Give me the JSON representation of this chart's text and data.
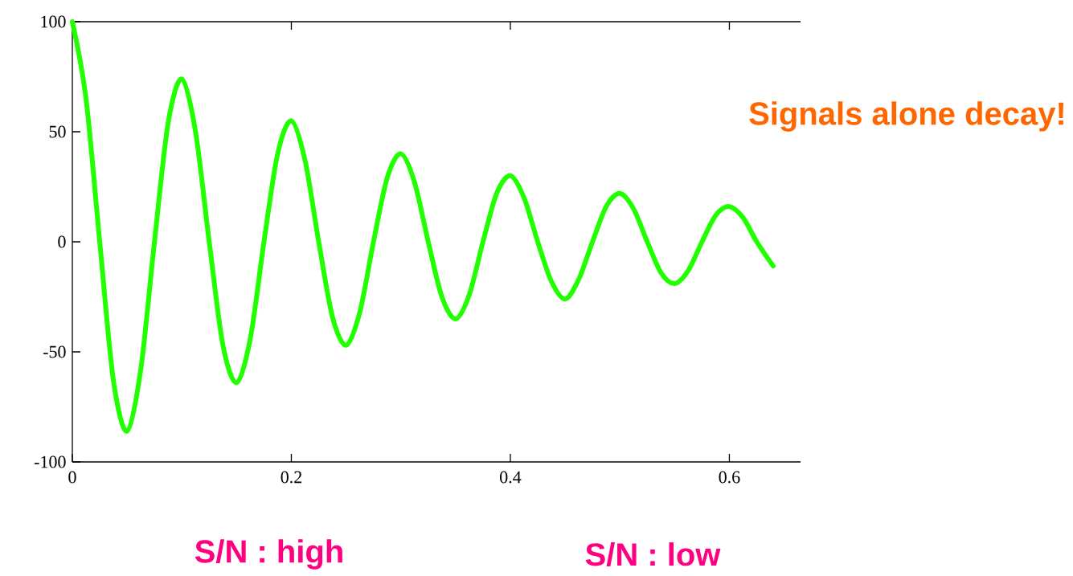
{
  "chart_data": {
    "type": "line",
    "x": [
      0,
      0.0125,
      0.025,
      0.0375,
      0.05,
      0.0625,
      0.075,
      0.0875,
      0.1,
      0.1125,
      0.125,
      0.1375,
      0.15,
      0.1625,
      0.175,
      0.1875,
      0.2,
      0.2125,
      0.225,
      0.2375,
      0.25,
      0.2625,
      0.275,
      0.2875,
      0.3,
      0.3125,
      0.325,
      0.3375,
      0.35,
      0.3625,
      0.375,
      0.3875,
      0.4,
      0.4125,
      0.425,
      0.4375,
      0.45,
      0.4625,
      0.475,
      0.4875,
      0.5,
      0.5125,
      0.525,
      0.5375,
      0.55,
      0.5625,
      0.575,
      0.5875,
      0.6,
      0.6125,
      0.625,
      0.64
    ],
    "series": [
      {
        "color": "#22ff00",
        "values": [
          100,
          65,
          0,
          -63,
          -86,
          -58,
          0,
          54,
          74,
          50,
          0,
          -47,
          -64,
          -44,
          0,
          40,
          55,
          37,
          0,
          -34,
          -47,
          -32,
          0,
          29,
          40,
          27,
          0,
          -25,
          -35,
          -24,
          0,
          22,
          30,
          20,
          0,
          -18,
          -26,
          -17,
          0,
          16,
          22,
          15,
          0,
          -14,
          -19,
          -13,
          0,
          12,
          16,
          11,
          0,
          -11
        ]
      }
    ],
    "xlim": [
      0,
      0.665
    ],
    "ylim": [
      -100,
      100
    ],
    "xticks": [
      0,
      0.2,
      0.4,
      0.6
    ],
    "yticks": [
      -100,
      -50,
      0,
      50,
      100
    ],
    "grid": false,
    "marker": "none",
    "line_style": "solid",
    "annotations": [
      "Signals alone decay!",
      "S/N : high",
      "S/N : low"
    ]
  }
}
